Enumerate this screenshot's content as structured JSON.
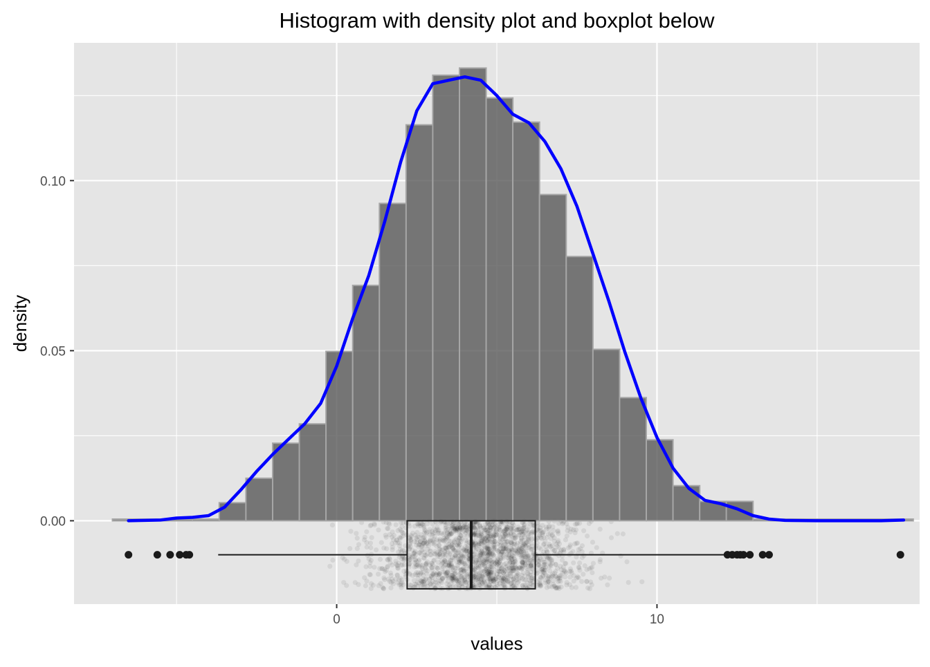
{
  "chart_data": {
    "type": "histogram",
    "title": "Histogram with density plot and boxplot below",
    "xlabel": "values",
    "ylabel": "density",
    "xlim": [
      -8.2,
      18.2
    ],
    "ylim": [
      -0.0245,
      0.1405
    ],
    "x_ticks": [
      0,
      10
    ],
    "x_tick_labels": [
      "0",
      "10"
    ],
    "x_minor_ticks": [
      -5,
      5,
      15
    ],
    "y_ticks": [
      0.0,
      0.05,
      0.1
    ],
    "y_tick_labels": [
      "0.00",
      "0.05",
      "0.10"
    ],
    "y_minor_ticks": [
      0.025,
      0.075,
      0.125
    ],
    "grid": true,
    "histogram": {
      "bin_width": 0.8333,
      "fill": "#595959",
      "fill_opacity": 0.8,
      "edge_color": "#a6a6a6",
      "bins": [
        {
          "x0": -7.0,
          "x1": -6.1667,
          "density": 0.0005
        },
        {
          "x0": -6.1667,
          "x1": -5.3333,
          "density": 0.0005
        },
        {
          "x0": -5.3333,
          "x1": -4.5,
          "density": 0.0005
        },
        {
          "x0": -4.5,
          "x1": -3.6667,
          "density": 0.0005
        },
        {
          "x0": -3.6667,
          "x1": -2.8333,
          "density": 0.0053
        },
        {
          "x0": -2.8333,
          "x1": -2.0,
          "density": 0.0125
        },
        {
          "x0": -2.0,
          "x1": -1.1667,
          "density": 0.0228
        },
        {
          "x0": -1.1667,
          "x1": -0.3333,
          "density": 0.0285
        },
        {
          "x0": -0.3333,
          "x1": 0.5,
          "density": 0.0498
        },
        {
          "x0": 0.5,
          "x1": 1.3333,
          "density": 0.0692
        },
        {
          "x0": 1.3333,
          "x1": 2.1667,
          "density": 0.0933
        },
        {
          "x0": 2.1667,
          "x1": 3.0,
          "density": 0.1164
        },
        {
          "x0": 3.0,
          "x1": 3.8333,
          "density": 0.131
        },
        {
          "x0": 3.8333,
          "x1": 4.6667,
          "density": 0.1331
        },
        {
          "x0": 4.6667,
          "x1": 5.5,
          "density": 0.1243
        },
        {
          "x0": 5.5,
          "x1": 6.3333,
          "density": 0.1172
        },
        {
          "x0": 6.3333,
          "x1": 7.1667,
          "density": 0.0959
        },
        {
          "x0": 7.1667,
          "x1": 8.0,
          "density": 0.0777
        },
        {
          "x0": 8.0,
          "x1": 8.8333,
          "density": 0.0504
        },
        {
          "x0": 8.8333,
          "x1": 9.6667,
          "density": 0.0362
        },
        {
          "x0": 9.6667,
          "x1": 10.5,
          "density": 0.0238
        },
        {
          "x0": 10.5,
          "x1": 11.3333,
          "density": 0.0103
        },
        {
          "x0": 11.3333,
          "x1": 12.1667,
          "density": 0.0057
        },
        {
          "x0": 12.1667,
          "x1": 13.0,
          "density": 0.0057
        },
        {
          "x0": 13.0,
          "x1": 13.8333,
          "density": 0.0005
        },
        {
          "x0": 13.8333,
          "x1": 14.6667,
          "density": 0.0005
        },
        {
          "x0": 14.6667,
          "x1": 15.5,
          "density": 0.0005
        },
        {
          "x0": 15.5,
          "x1": 16.3333,
          "density": 0.0005
        },
        {
          "x0": 16.3333,
          "x1": 17.1667,
          "density": 0.0005
        },
        {
          "x0": 17.1667,
          "x1": 18.0,
          "density": 0.0005
        }
      ]
    },
    "density_curve": {
      "color": "#0000ff",
      "points": [
        [
          -6.5,
          0.0
        ],
        [
          -5.5,
          0.0002
        ],
        [
          -5.0,
          0.0008
        ],
        [
          -4.5,
          0.001
        ],
        [
          -4.0,
          0.0015
        ],
        [
          -3.5,
          0.004
        ],
        [
          -3.0,
          0.009
        ],
        [
          -2.5,
          0.0145
        ],
        [
          -2.0,
          0.0195
        ],
        [
          -1.5,
          0.024
        ],
        [
          -1.0,
          0.0285
        ],
        [
          -0.5,
          0.0345
        ],
        [
          0.0,
          0.0455
        ],
        [
          0.5,
          0.0595
        ],
        [
          1.0,
          0.072
        ],
        [
          1.5,
          0.088
        ],
        [
          2.0,
          0.1055
        ],
        [
          2.5,
          0.1205
        ],
        [
          3.0,
          0.1285
        ],
        [
          3.5,
          0.1295
        ],
        [
          4.0,
          0.1305
        ],
        [
          4.5,
          0.1295
        ],
        [
          5.0,
          0.125
        ],
        [
          5.5,
          0.1195
        ],
        [
          6.0,
          0.117
        ],
        [
          6.5,
          0.1115
        ],
        [
          7.0,
          0.1035
        ],
        [
          7.5,
          0.0925
        ],
        [
          8.0,
          0.0785
        ],
        [
          8.5,
          0.0645
        ],
        [
          9.0,
          0.0495
        ],
        [
          9.5,
          0.036
        ],
        [
          10.0,
          0.0245
        ],
        [
          10.5,
          0.0155
        ],
        [
          11.0,
          0.0095
        ],
        [
          11.5,
          0.006
        ],
        [
          12.0,
          0.005
        ],
        [
          12.5,
          0.0035
        ],
        [
          13.0,
          0.0015
        ],
        [
          13.5,
          0.0005
        ],
        [
          14.0,
          0.0001
        ],
        [
          15.0,
          0.0
        ],
        [
          16.0,
          0.0
        ],
        [
          17.0,
          0.0
        ],
        [
          17.7,
          0.0002
        ]
      ]
    },
    "boxplot": {
      "y_range": [
        -0.02,
        0.0
      ],
      "min_whisker": -3.7,
      "q1": 2.2,
      "median": 4.2,
      "q3": 6.2,
      "max_whisker": 12.4,
      "outliers": [
        -6.5,
        -5.6,
        -5.2,
        -4.9,
        -4.7,
        -4.6,
        12.2,
        12.35,
        12.5,
        12.6,
        12.7,
        12.9,
        13.3,
        13.5,
        17.6
      ],
      "jitter_count": 2000,
      "jitter_opacity": 0.07
    }
  }
}
